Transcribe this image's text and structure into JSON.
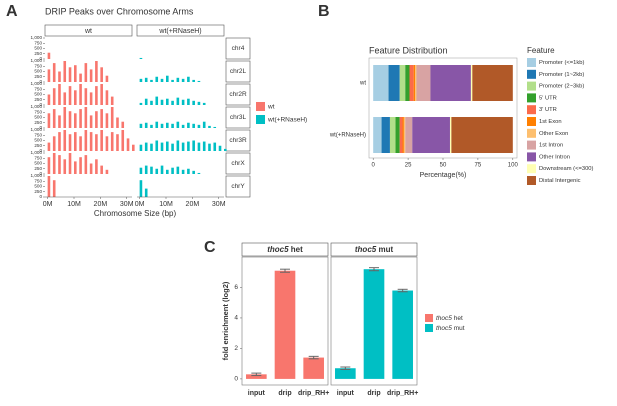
{
  "chart_data": [
    {
      "type": "facet_bar",
      "panel_label": "A",
      "title": "DRIP Peaks over Chromosome Arms",
      "x_label": "Chromosome Size (bp)",
      "columns": [
        "wt",
        "wt(+RNaseH)"
      ],
      "rows": [
        "chr4",
        "chr2L",
        "chr2R",
        "chr3L",
        "chr3R",
        "chrX",
        "chrY"
      ],
      "x": [
        [
          0
        ],
        [
          0,
          2,
          4,
          6,
          8,
          10,
          12,
          14,
          16,
          18,
          20,
          22
        ],
        [
          0,
          2,
          4,
          6,
          8,
          10,
          12,
          14,
          16,
          18,
          20,
          22,
          24
        ],
        [
          0,
          2,
          4,
          6,
          8,
          10,
          12,
          14,
          16,
          18,
          20,
          22,
          24,
          26,
          28
        ],
        [
          0,
          2,
          4,
          6,
          8,
          10,
          12,
          14,
          16,
          18,
          20,
          22,
          24,
          26,
          28,
          30,
          32
        ],
        [
          0,
          2,
          4,
          6,
          8,
          10,
          12,
          14,
          16,
          18,
          20,
          22
        ],
        [
          0,
          2
        ]
      ],
      "xlim": [
        -1,
        32
      ],
      "xticks": [
        {
          "value": 0,
          "label": "0M"
        },
        {
          "value": 10,
          "label": "10M"
        },
        {
          "value": 20,
          "label": "20M"
        },
        {
          "value": 30,
          "label": "30M"
        }
      ],
      "ylim": [
        0,
        1000
      ],
      "yticks": [
        0,
        250,
        500,
        750,
        {
          "value": 1000,
          "label": "1,000"
        }
      ],
      "series": [
        {
          "name": "wt",
          "color": "#f8766d",
          "values": [
            [
              300
            ],
            [
              600,
              900,
              500,
              1000,
              700,
              800,
              400,
              900,
              600,
              1000,
              700,
              300
            ],
            [
              500,
              800,
              1000,
              600,
              900,
              700,
              1000,
              800,
              600,
              900,
              1000,
              700,
              400
            ],
            [
              700,
              900,
              600,
              1000,
              800,
              700,
              900,
              1000,
              600,
              800,
              900,
              700,
              1000,
              500,
              300
            ],
            [
              400,
              700,
              900,
              1000,
              800,
              900,
              700,
              1000,
              900,
              800,
              1000,
              700,
              900,
              800,
              1000,
              600,
              300
            ],
            [
              800,
              1000,
              900,
              700,
              1000,
              600,
              800,
              900,
              500,
              700,
              400,
              200
            ],
            [
              1000,
              800
            ]
          ]
        },
        {
          "name": "wt(+RNaseH)",
          "color": "#00bfc4",
          "values": [
            [
              50
            ],
            [
              150,
              200,
              100,
              250,
              150,
              300,
              100,
              200,
              150,
              250,
              100,
              50
            ],
            [
              100,
              300,
              200,
              400,
              250,
              300,
              200,
              350,
              250,
              300,
              200,
              150,
              100
            ],
            [
              200,
              250,
              150,
              300,
              200,
              250,
              200,
              300,
              150,
              250,
              200,
              150,
              300,
              100,
              50
            ],
            [
              300,
              400,
              350,
              500,
              400,
              450,
              350,
              500,
              400,
              450,
              500,
              400,
              450,
              350,
              400,
              250,
              100
            ],
            [
              300,
              400,
              350,
              250,
              400,
              200,
              300,
              350,
              200,
              250,
              150,
              50
            ],
            [
              800,
              400
            ]
          ]
        }
      ]
    },
    {
      "type": "stacked_barh",
      "panel_label": "B",
      "title": "Feature Distribution",
      "x_label": "Percentage(%)",
      "legend_title": "Feature",
      "categories": [
        "wt",
        "wt(+RNaseH)"
      ],
      "xlim": [
        -3,
        103
      ],
      "xticks": [
        0,
        25,
        50,
        75,
        100
      ],
      "series": [
        {
          "name": "Promoter (<=1kb)",
          "color": "#a6cee3",
          "values": [
            11,
            6
          ]
        },
        {
          "name": "Promoter (1~2kb)",
          "color": "#1f78b4",
          "values": [
            8,
            6
          ]
        },
        {
          "name": "Promoter (2~3kb)",
          "color": "#b2df8a",
          "values": [
            4,
            4
          ]
        },
        {
          "name": "5' UTR",
          "color": "#33a02c",
          "values": [
            3,
            3
          ]
        },
        {
          "name": "3' UTR",
          "color": "#fb6a4a",
          "values": [
            3,
            2
          ]
        },
        {
          "name": "1st Exon",
          "color": "#ff7f00",
          "values": [
            1,
            1
          ]
        },
        {
          "name": "Other Exon",
          "color": "#fdbf6f",
          "values": [
            1,
            1
          ]
        },
        {
          "name": "1st Intron",
          "color": "#d8a3a3",
          "values": [
            10,
            5
          ]
        },
        {
          "name": "Other Intron",
          "color": "#8856a7",
          "values": [
            29,
            27
          ]
        },
        {
          "name": "Downstream (<=300)",
          "color": "#ffffb3",
          "values": [
            1,
            1
          ]
        },
        {
          "name": "Distal Intergenic",
          "color": "#b15928",
          "values": [
            29,
            44
          ]
        }
      ]
    },
    {
      "type": "grouped_bar",
      "panel_label": "C",
      "y_label": "fold enrichment (log2)",
      "categories": [
        "input",
        "drip",
        "drip_RH+"
      ],
      "ylim": [
        -0.4,
        8
      ],
      "yticks": [
        0,
        2,
        4,
        6
      ],
      "series": [
        {
          "gene": "thoc5",
          "name": "het",
          "color": "#f8766d",
          "values": [
            0.3,
            7.1,
            1.4
          ],
          "errors": [
            0.08,
            0.1,
            0.08
          ]
        },
        {
          "gene": "thoc5",
          "name": "mut",
          "color": "#00bfc4",
          "values": [
            0.7,
            7.2,
            5.8
          ],
          "errors": [
            0.08,
            0.1,
            0.08
          ]
        }
      ]
    }
  ]
}
